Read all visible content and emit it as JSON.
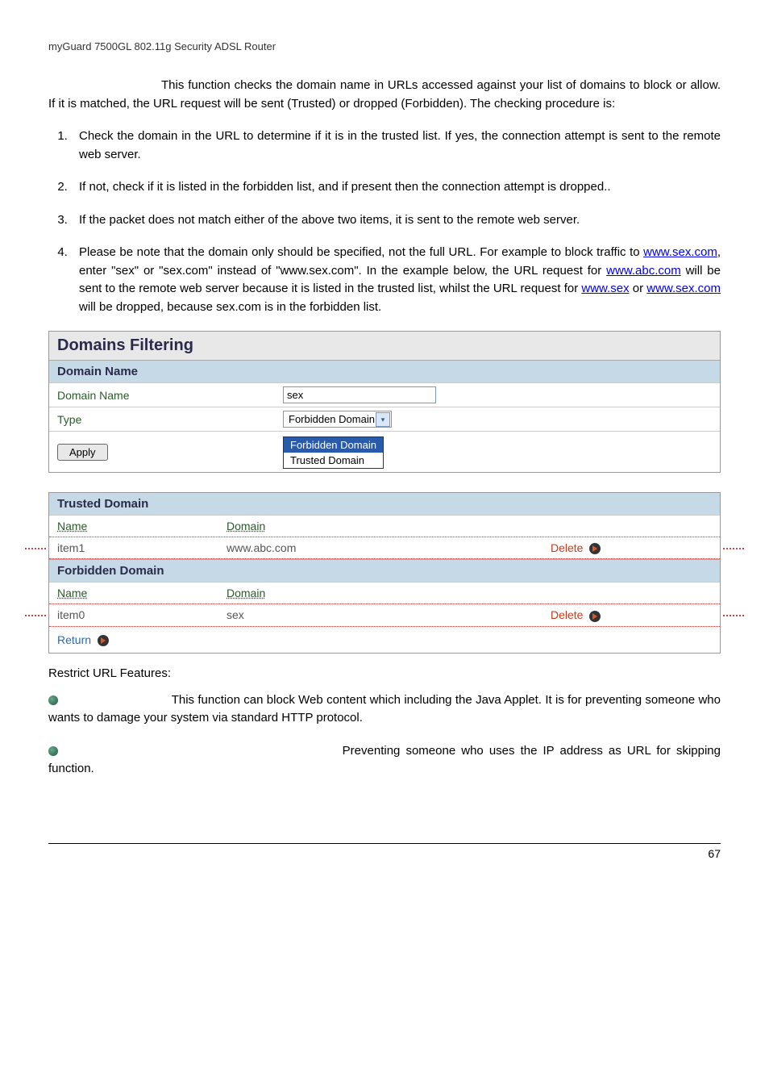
{
  "header": {
    "title": "myGuard 7500GL 802.11g Security ADSL Router"
  },
  "intro": {
    "lead": "This function checks the domain name in URLs accessed against your list of domains to block or allow. If it is matched, the URL request will be sent (Trusted) or dropped (Forbidden). The checking procedure is:"
  },
  "list": {
    "i1": "Check the domain in the URL to determine if it is in the trusted list. If yes, the connection attempt is sent to the remote web server.",
    "i2": "If not, check if it is listed in the forbidden list, and if present then the connection attempt is dropped..",
    "i3": "If the packet does not match either of the above two items, it is sent to the remote web server.",
    "i4a": "Please be note that the domain only should be specified, not the full URL. For example to block traffic to ",
    "i4link1": "www.sex.com",
    "i4b": ", enter \"sex\" or \"sex.com\" instead of \"www.sex.com\". In the example below, the URL request for ",
    "i4link2": "www.abc.com",
    "i4c": " will be sent to the remote web server because it is listed in the trusted list, whilst the URL request for ",
    "i4link3": "www.sex",
    "i4d": " or ",
    "i4link4": "www.sex.com",
    "i4e": " will be dropped, because sex.com is in the forbidden list."
  },
  "panel1": {
    "title": "Domains Filtering",
    "section": "Domain Name",
    "row1_label": "Domain Name",
    "row1_value": "sex",
    "row2_label": "Type",
    "row2_value": "Forbidden Domain",
    "dropdown": {
      "opt1": "Forbidden Domain",
      "opt2": "Trusted Domain"
    },
    "apply": "Apply"
  },
  "panel2": {
    "trusted_title": "Trusted Domain",
    "col_name": "Name",
    "col_domain": "Domain",
    "t_row": {
      "name": "item1",
      "domain": "www.abc.com",
      "action": "Delete"
    },
    "forbidden_title": "Forbidden Domain",
    "f_row": {
      "name": "item0",
      "domain": "sex",
      "action": "Delete"
    },
    "return": "Return"
  },
  "restrict": {
    "heading": "Restrict URL Features:"
  },
  "feat1": {
    "text": "This function can block Web content which including the Java Applet. It is for preventing someone who wants to damage your system via standard HTTP protocol."
  },
  "feat2": {
    "a": "Preventing someone who uses the IP address as URL for skipping",
    "b": "function."
  },
  "footer": {
    "page": "67"
  },
  "colors": {
    "link": "#0000ee",
    "accent": "#c93a1a",
    "section_bg": "#c5d9e6",
    "title_bg": "#e8e8e8"
  }
}
